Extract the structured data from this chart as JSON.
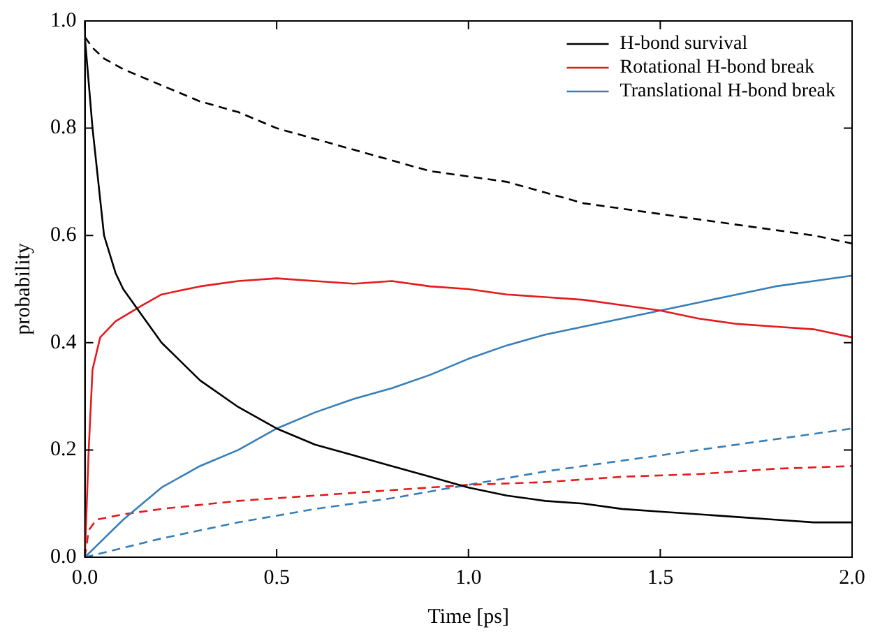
{
  "chart_data": {
    "type": "line",
    "xlabel": "Time [ps]",
    "ylabel": "probability",
    "xlim": [
      0,
      2
    ],
    "ylim": [
      0,
      1
    ],
    "xticks": [
      {
        "value": 0,
        "label": "0.0"
      },
      0.5,
      {
        "value": 1,
        "label": "1.0"
      },
      1.5,
      {
        "value": 2,
        "label": "2.0"
      }
    ],
    "yticks": [
      {
        "value": 0,
        "label": "0.0"
      },
      0.2,
      0.4,
      0.6,
      0.8,
      {
        "value": 1,
        "label": "1.0"
      }
    ],
    "grid": false,
    "legend": "top right",
    "marker": "none",
    "series": [
      {
        "name": "H-bond survival",
        "color": "#000000",
        "line_style": "solid",
        "x": [
          0,
          0.02,
          0.05,
          0.08,
          0.1,
          0.15,
          0.2,
          0.3,
          0.4,
          0.5,
          0.6,
          0.7,
          0.8,
          0.9,
          1.0,
          1.1,
          1.2,
          1.3,
          1.4,
          1.5,
          1.6,
          1.7,
          1.8,
          1.9,
          2.0
        ],
        "values": [
          0.97,
          0.8,
          0.6,
          0.53,
          0.5,
          0.45,
          0.4,
          0.33,
          0.28,
          0.24,
          0.21,
          0.19,
          0.17,
          0.15,
          0.13,
          0.115,
          0.105,
          0.1,
          0.09,
          0.085,
          0.08,
          0.075,
          0.07,
          0.065,
          0.065
        ]
      },
      {
        "name": "Rotational H-bond break",
        "color": "#e41a1c",
        "line_style": "solid",
        "x": [
          0,
          0.01,
          0.02,
          0.04,
          0.08,
          0.15,
          0.2,
          0.3,
          0.4,
          0.5,
          0.6,
          0.7,
          0.8,
          0.9,
          1.0,
          1.1,
          1.2,
          1.3,
          1.4,
          1.5,
          1.6,
          1.7,
          1.8,
          1.9,
          2.0
        ],
        "values": [
          0,
          0.2,
          0.35,
          0.41,
          0.44,
          0.47,
          0.49,
          0.505,
          0.515,
          0.52,
          0.515,
          0.51,
          0.515,
          0.505,
          0.5,
          0.49,
          0.485,
          0.48,
          0.47,
          0.46,
          0.445,
          0.435,
          0.43,
          0.425,
          0.41
        ]
      },
      {
        "name": "Translational H-bond break",
        "color": "#377eb8",
        "line_style": "solid",
        "x": [
          0,
          0.1,
          0.2,
          0.3,
          0.4,
          0.5,
          0.6,
          0.7,
          0.8,
          0.9,
          1.0,
          1.1,
          1.2,
          1.3,
          1.4,
          1.5,
          1.6,
          1.7,
          1.8,
          1.9,
          2.0
        ],
        "values": [
          0,
          0.07,
          0.13,
          0.17,
          0.2,
          0.24,
          0.27,
          0.295,
          0.315,
          0.34,
          0.37,
          0.395,
          0.415,
          0.43,
          0.445,
          0.46,
          0.475,
          0.49,
          0.505,
          0.515,
          0.525
        ]
      },
      {
        "color": "#000000",
        "line_style": "dashed",
        "x": [
          0,
          0.02,
          0.05,
          0.1,
          0.2,
          0.3,
          0.4,
          0.5,
          0.6,
          0.7,
          0.8,
          0.9,
          1.0,
          1.1,
          1.2,
          1.3,
          1.4,
          1.5,
          1.6,
          1.7,
          1.8,
          1.9,
          2.0
        ],
        "values": [
          0.97,
          0.95,
          0.93,
          0.91,
          0.88,
          0.85,
          0.83,
          0.8,
          0.78,
          0.76,
          0.74,
          0.72,
          0.71,
          0.7,
          0.68,
          0.66,
          0.65,
          0.64,
          0.63,
          0.62,
          0.61,
          0.6,
          0.585
        ]
      },
      {
        "color": "#e41a1c",
        "line_style": "dashed",
        "x": [
          0,
          0.01,
          0.03,
          0.1,
          0.2,
          0.4,
          0.6,
          0.8,
          1.0,
          1.2,
          1.4,
          1.6,
          1.8,
          2.0
        ],
        "values": [
          0,
          0.05,
          0.07,
          0.08,
          0.09,
          0.105,
          0.115,
          0.125,
          0.135,
          0.14,
          0.15,
          0.155,
          0.165,
          0.17
        ]
      },
      {
        "color": "#377eb8",
        "line_style": "dashed",
        "x": [
          0,
          0.2,
          0.4,
          0.6,
          0.8,
          1.0,
          1.2,
          1.4,
          1.6,
          1.8,
          2.0
        ],
        "values": [
          0,
          0.035,
          0.065,
          0.09,
          0.11,
          0.135,
          0.16,
          0.18,
          0.2,
          0.22,
          0.24
        ]
      }
    ]
  }
}
